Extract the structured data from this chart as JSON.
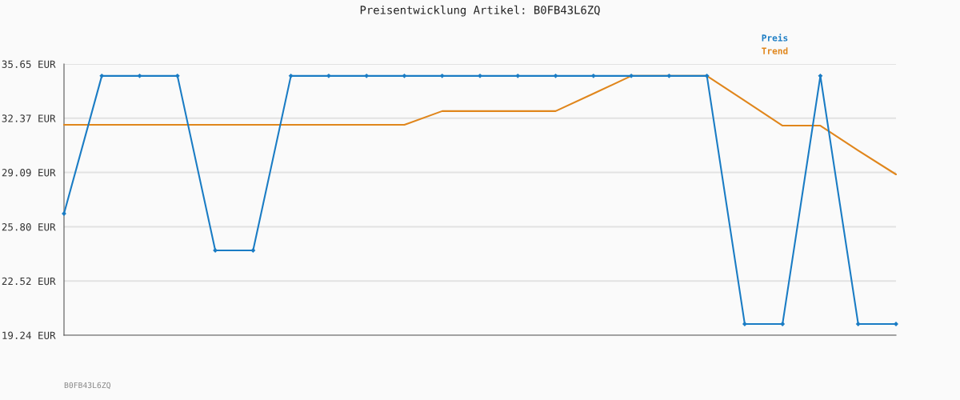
{
  "chart_data": {
    "type": "line",
    "title": "Preisentwicklung Artikel: B0FB43L6ZQ",
    "categories": [
      null,
      null,
      null,
      null,
      null,
      null,
      null,
      null,
      null,
      null,
      null,
      null,
      null,
      null,
      null,
      null,
      null,
      null,
      null,
      null,
      null,
      null,
      null
    ],
    "series": [
      {
        "name": "Preis",
        "color": "#1a7cc4",
        "marker": "diamond",
        "values": [
          26.6,
          34.93,
          34.93,
          34.93,
          24.37,
          24.37,
          34.93,
          34.93,
          34.93,
          34.93,
          34.93,
          34.93,
          34.93,
          34.93,
          34.93,
          34.93,
          34.93,
          34.93,
          19.92,
          19.92,
          34.93,
          19.92,
          19.92
        ]
      },
      {
        "name": "Trend",
        "color": "#e0861c",
        "marker": "none",
        "values": [
          31.97,
          31.97,
          31.97,
          31.97,
          31.97,
          31.97,
          31.97,
          31.97,
          31.97,
          31.97,
          32.8,
          32.8,
          32.8,
          32.8,
          33.86,
          34.93,
          34.93,
          34.93,
          33.43,
          31.92,
          31.92,
          30.42,
          28.97
        ]
      }
    ],
    "ylim": [
      19.24,
      35.65
    ],
    "yticks": [
      {
        "value": 19.24,
        "label": "19.24 EUR"
      },
      {
        "value": 22.52,
        "label": "22.52 EUR"
      },
      {
        "value": 25.8,
        "label": "25.80 EUR"
      },
      {
        "value": 29.09,
        "label": "29.09 EUR"
      },
      {
        "value": 32.37,
        "label": "32.37 EUR"
      },
      {
        "value": 35.65,
        "label": "35.65 EUR"
      }
    ],
    "grid": "y",
    "legend": "top right",
    "line_style": "solid",
    "annotations": [
      "B0FB43L6ZQ"
    ]
  }
}
